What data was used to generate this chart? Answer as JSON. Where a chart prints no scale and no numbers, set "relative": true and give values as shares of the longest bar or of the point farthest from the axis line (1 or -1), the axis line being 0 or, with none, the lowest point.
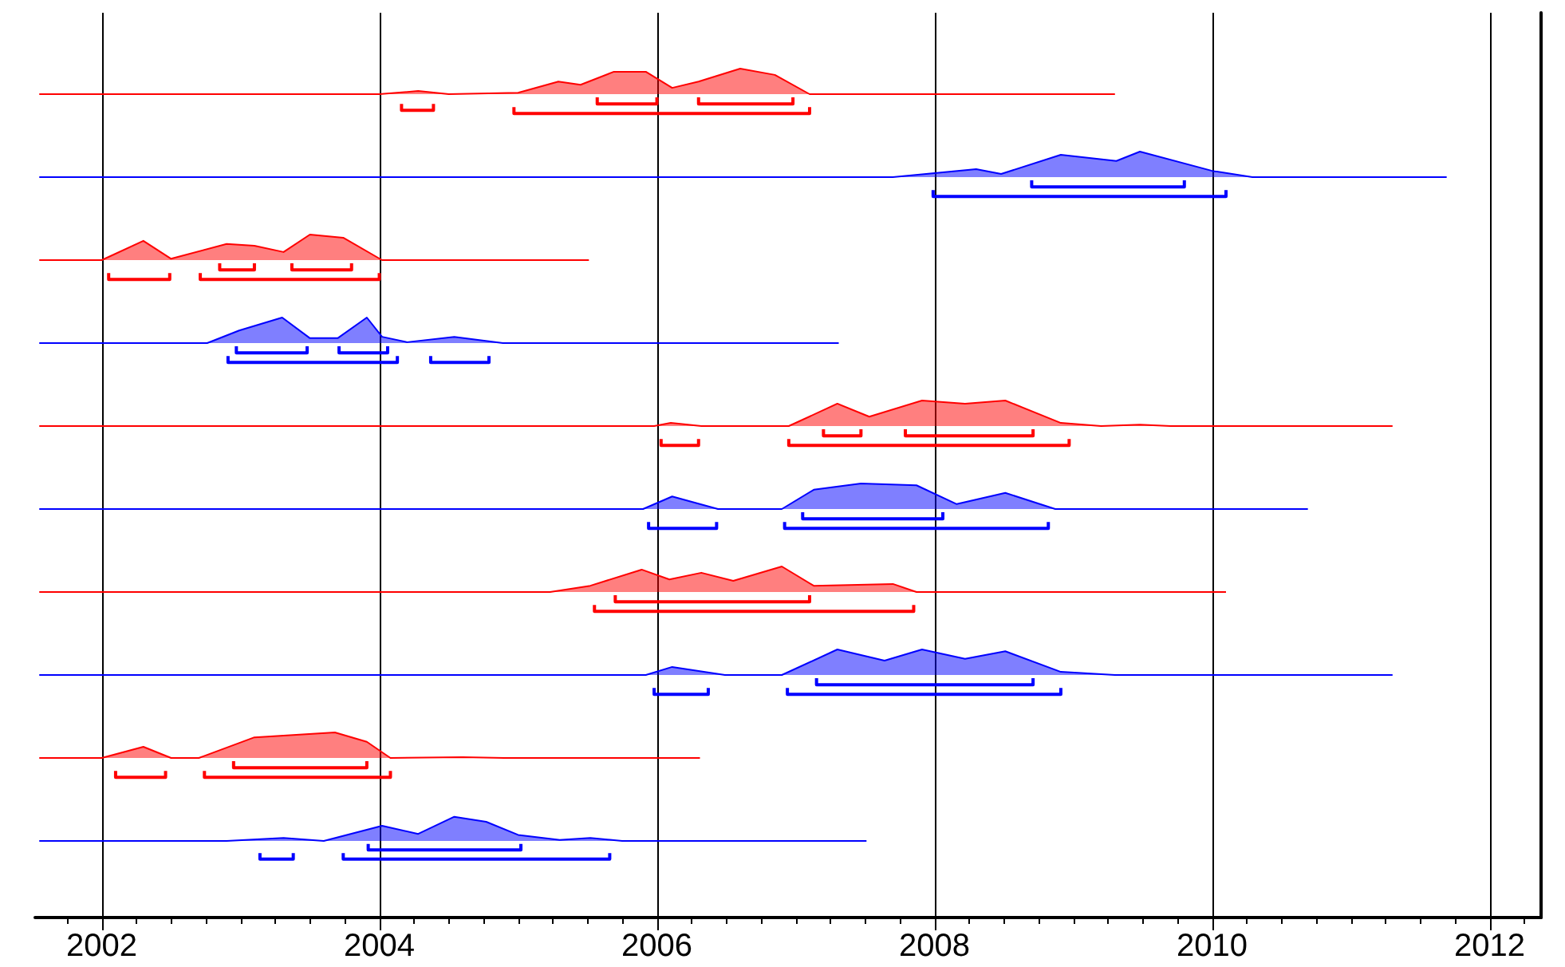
{
  "chart_data": [
    {
      "type": "area",
      "relative": true,
      "xticks": [
        2002,
        2004,
        2006,
        2008,
        2010,
        2012
      ],
      "grid": "x",
      "tick_labels": false,
      "series": [
        {
          "color": "#ff0000",
          "x": [
            2001.55,
            2004.0,
            2004.28,
            2004.5,
            2005.0,
            2005.29,
            2005.45,
            2005.69,
            2005.92,
            2006.11,
            2006.3,
            2006.6,
            2006.85,
            2007.1,
            2009.3
          ],
          "values": [
            0.43,
            0.43,
            0.5,
            0.43,
            0.46,
            0.71,
            0.64,
            0.93,
            0.93,
            0.57,
            0.71,
            1,
            0.86,
            0.43,
            0.43
          ]
        },
        {
          "type": "line",
          "color": "#ff0000",
          "x": [
            2004.16,
            2004.16,
            2004.39,
            2004.39
          ],
          "values": [
            0.21,
            0.07,
            0.07,
            0.21
          ]
        },
        {
          "type": "line",
          "color": "#ff0000",
          "x": [
            2005.57,
            2005.57,
            2006.0,
            2006.0
          ],
          "values": [
            0.36,
            0.21,
            0.21,
            0.36
          ]
        },
        {
          "type": "line",
          "color": "#ff0000",
          "x": [
            2006.3,
            2006.3,
            2006.98,
            2006.98
          ],
          "values": [
            0.36,
            0.21,
            0.21,
            0.36
          ]
        },
        {
          "type": "line",
          "color": "#ff0000",
          "x": [
            2004.97,
            2004.97,
            2007.1,
            2007.1
          ],
          "values": [
            0.14,
            0,
            0,
            0.14
          ]
        }
      ]
    },
    {
      "type": "area",
      "relative": true,
      "xticks": [
        2002,
        2004,
        2006,
        2008,
        2010,
        2012
      ],
      "grid": "x",
      "tick_labels": false,
      "series": [
        {
          "color": "#0000ff",
          "x": [
            2001.55,
            2007.7,
            2008.3,
            2008.48,
            2008.91,
            2009.31,
            2009.48,
            2010.0,
            2010.29,
            2011.69
          ],
          "values": [
            0.43,
            0.43,
            0.61,
            0.5,
            0.93,
            0.79,
            1,
            0.57,
            0.43,
            0.43
          ]
        },
        {
          "type": "line",
          "color": "#0000ff",
          "x": [
            2008.7,
            2008.7,
            2009.8,
            2009.8
          ],
          "values": [
            0.36,
            0.21,
            0.21,
            0.36
          ]
        },
        {
          "type": "line",
          "color": "#0000ff",
          "x": [
            2007.99,
            2007.99,
            2010.1,
            2010.1
          ],
          "values": [
            0.14,
            0,
            0,
            0.14
          ]
        }
      ]
    },
    {
      "type": "area",
      "relative": true,
      "xticks": [
        2002,
        2004,
        2006,
        2008,
        2010,
        2012
      ],
      "grid": "x",
      "tick_labels": false,
      "series": [
        {
          "color": "#ff0000",
          "x": [
            2001.55,
            2002.0,
            2002.3,
            2002.5,
            2002.9,
            2003.1,
            2003.31,
            2003.5,
            2003.74,
            2004.02,
            2005.51
          ],
          "values": [
            0.43,
            0.43,
            0.86,
            0.46,
            0.79,
            0.75,
            0.61,
            1,
            0.93,
            0.43,
            0.43
          ]
        },
        {
          "type": "line",
          "color": "#ff0000",
          "x": [
            2002.05,
            2002.05,
            2002.49,
            2002.49
          ],
          "values": [
            0.14,
            0,
            0,
            0.14
          ]
        },
        {
          "type": "line",
          "color": "#ff0000",
          "x": [
            2002.85,
            2002.85,
            2003.1,
            2003.1
          ],
          "values": [
            0.36,
            0.21,
            0.21,
            0.36
          ]
        },
        {
          "type": "line",
          "color": "#ff0000",
          "x": [
            2003.37,
            2003.37,
            2003.8,
            2003.8
          ],
          "values": [
            0.36,
            0.21,
            0.21,
            0.36
          ]
        },
        {
          "type": "line",
          "color": "#ff0000",
          "x": [
            2002.71,
            2002.71,
            2004.0,
            2004.0
          ],
          "values": [
            0.14,
            0,
            0,
            0.14
          ]
        }
      ]
    },
    {
      "type": "area",
      "relative": true,
      "xticks": [
        2002,
        2004,
        2006,
        2008,
        2010,
        2012
      ],
      "grid": "x",
      "tick_labels": false,
      "series": [
        {
          "color": "#0000ff",
          "x": [
            2001.55,
            2002.76,
            2002.99,
            2003.3,
            2003.5,
            2003.7,
            2003.91,
            2004.02,
            2004.2,
            2004.54,
            2004.89,
            2007.31
          ],
          "values": [
            0.43,
            0.43,
            0.71,
            1,
            0.54,
            0.54,
            1,
            0.57,
            0.45,
            0.57,
            0.43,
            0.43
          ]
        },
        {
          "type": "line",
          "color": "#0000ff",
          "x": [
            2002.97,
            2002.97,
            2003.48,
            2003.48
          ],
          "values": [
            0.36,
            0.21,
            0.21,
            0.36
          ]
        },
        {
          "type": "line",
          "color": "#0000ff",
          "x": [
            2003.71,
            2003.71,
            2004.06,
            2004.06
          ],
          "values": [
            0.36,
            0.21,
            0.21,
            0.36
          ]
        },
        {
          "type": "line",
          "color": "#0000ff",
          "x": [
            2002.91,
            2002.91,
            2004.13,
            2004.13
          ],
          "values": [
            0.14,
            0,
            0,
            0.14
          ]
        },
        {
          "type": "line",
          "color": "#0000ff",
          "x": [
            2004.37,
            2004.37,
            2004.79,
            2004.79
          ],
          "values": [
            0.14,
            0,
            0,
            0.14
          ]
        }
      ]
    },
    {
      "type": "area",
      "relative": true,
      "xticks": [
        2002,
        2004,
        2006,
        2008,
        2010,
        2012
      ],
      "grid": "x",
      "tick_labels": false,
      "series": [
        {
          "color": "#ff0000",
          "x": [
            2001.55,
            2005.98,
            2006.1,
            2006.32,
            2006.95,
            2007.3,
            2007.53,
            2007.91,
            2008.22,
            2008.51,
            2008.91,
            2009.2,
            2009.48,
            2009.7,
            2011.3
          ],
          "values": [
            0.43,
            0.43,
            0.5,
            0.43,
            0.43,
            0.93,
            0.64,
            1,
            0.93,
            1,
            0.5,
            0.43,
            0.46,
            0.43,
            0.43
          ]
        },
        {
          "type": "line",
          "color": "#ff0000",
          "x": [
            2006.03,
            2006.03,
            2006.3,
            2006.3
          ],
          "values": [
            0.14,
            0,
            0,
            0.14
          ]
        },
        {
          "type": "line",
          "color": "#ff0000",
          "x": [
            2007.2,
            2007.2,
            2007.47,
            2007.47
          ],
          "values": [
            0.36,
            0.21,
            0.21,
            0.36
          ]
        },
        {
          "type": "line",
          "color": "#ff0000",
          "x": [
            2007.79,
            2007.79,
            2008.71,
            2008.71
          ],
          "values": [
            0.36,
            0.21,
            0.21,
            0.36
          ]
        },
        {
          "type": "line",
          "color": "#ff0000",
          "x": [
            2006.95,
            2006.95,
            2008.97,
            2008.97
          ],
          "values": [
            0.14,
            0,
            0,
            0.14
          ]
        }
      ]
    },
    {
      "type": "area",
      "relative": true,
      "xticks": [
        2002,
        2004,
        2006,
        2008,
        2010,
        2012
      ],
      "grid": "x",
      "tick_labels": false,
      "series": [
        {
          "color": "#0000ff",
          "x": [
            2001.55,
            2005.9,
            2006.11,
            2006.44,
            2006.9,
            2007.13,
            2007.47,
            2007.87,
            2008.16,
            2008.51,
            2008.87,
            2010.69
          ],
          "values": [
            0.43,
            0.43,
            0.71,
            0.43,
            0.43,
            0.86,
            1,
            0.96,
            0.54,
            0.79,
            0.43,
            0.43
          ]
        },
        {
          "type": "line",
          "color": "#0000ff",
          "x": [
            2005.94,
            2005.94,
            2006.43,
            2006.43
          ],
          "values": [
            0.14,
            0,
            0,
            0.14
          ]
        },
        {
          "type": "line",
          "color": "#0000ff",
          "x": [
            2007.05,
            2007.05,
            2008.06,
            2008.06
          ],
          "values": [
            0.36,
            0.21,
            0.21,
            0.36
          ]
        },
        {
          "type": "line",
          "color": "#0000ff",
          "x": [
            2006.92,
            2006.92,
            2008.82,
            2008.82
          ],
          "values": [
            0.14,
            0,
            0,
            0.14
          ]
        }
      ]
    },
    {
      "type": "area",
      "relative": true,
      "xticks": [
        2002,
        2004,
        2006,
        2008,
        2010,
        2012
      ],
      "grid": "x",
      "tick_labels": false,
      "series": [
        {
          "color": "#ff0000",
          "x": [
            2001.55,
            2005.23,
            2005.52,
            2005.89,
            2006.09,
            2006.32,
            2006.55,
            2006.9,
            2007.13,
            2007.7,
            2007.87,
            2010.1
          ],
          "values": [
            0.43,
            0.43,
            0.57,
            0.93,
            0.71,
            0.86,
            0.68,
            1,
            0.57,
            0.61,
            0.43,
            0.43
          ]
        },
        {
          "type": "line",
          "color": "#ff0000",
          "x": [
            2005.7,
            2005.7,
            2007.1,
            2007.1
          ],
          "values": [
            0.36,
            0.21,
            0.21,
            0.36
          ]
        },
        {
          "type": "line",
          "color": "#ff0000",
          "x": [
            2005.55,
            2005.55,
            2007.85,
            2007.85
          ],
          "values": [
            0.14,
            0,
            0,
            0.14
          ]
        }
      ]
    },
    {
      "type": "area",
      "relative": true,
      "xticks": [
        2002,
        2004,
        2006,
        2008,
        2010,
        2012
      ],
      "grid": "x",
      "tick_labels": false,
      "series": [
        {
          "color": "#0000ff",
          "x": [
            2001.55,
            2005.92,
            2006.11,
            2006.49,
            2006.9,
            2007.3,
            2007.64,
            2007.91,
            2008.22,
            2008.51,
            2008.91,
            2009.3,
            2011.3
          ],
          "values": [
            0.43,
            0.43,
            0.61,
            0.43,
            0.43,
            1,
            0.75,
            1,
            0.79,
            0.96,
            0.5,
            0.43,
            0.43
          ]
        },
        {
          "type": "line",
          "color": "#0000ff",
          "x": [
            2005.98,
            2005.98,
            2006.37,
            2006.37
          ],
          "values": [
            0.14,
            0,
            0,
            0.14
          ]
        },
        {
          "type": "line",
          "color": "#0000ff",
          "x": [
            2007.15,
            2007.15,
            2008.71,
            2008.71
          ],
          "values": [
            0.36,
            0.21,
            0.21,
            0.36
          ]
        },
        {
          "type": "line",
          "color": "#0000ff",
          "x": [
            2006.94,
            2006.94,
            2008.91,
            2008.91
          ],
          "values": [
            0.14,
            0,
            0,
            0.14
          ]
        }
      ]
    },
    {
      "type": "area",
      "relative": true,
      "xticks": [
        2002,
        2004,
        2006,
        2008,
        2010,
        2012
      ],
      "grid": "x",
      "tick_labels": false,
      "series": [
        {
          "color": "#ff0000",
          "x": [
            2001.55,
            2002.0,
            2002.3,
            2002.5,
            2002.7,
            2003.1,
            2003.68,
            2003.91,
            2004.08,
            2004.6,
            2004.9,
            2006.31
          ],
          "values": [
            0.43,
            0.43,
            0.68,
            0.43,
            0.43,
            0.89,
            1,
            0.79,
            0.43,
            0.45,
            0.43,
            0.43
          ]
        },
        {
          "type": "line",
          "color": "#ff0000",
          "x": [
            2002.1,
            2002.1,
            2002.46,
            2002.46
          ],
          "values": [
            0.14,
            0,
            0,
            0.14
          ]
        },
        {
          "type": "line",
          "color": "#ff0000",
          "x": [
            2002.95,
            2002.95,
            2003.91,
            2003.91
          ],
          "values": [
            0.36,
            0.21,
            0.21,
            0.36
          ]
        },
        {
          "type": "line",
          "color": "#ff0000",
          "x": [
            2002.74,
            2002.74,
            2004.08,
            2004.08
          ],
          "values": [
            0.14,
            0,
            0,
            0.14
          ]
        }
      ]
    },
    {
      "type": "area",
      "relative": true,
      "xlim": [
        2001.52,
        2012.37
      ],
      "xticks": [
        2002,
        2004,
        2006,
        2008,
        2010,
        2012
      ],
      "grid": "x",
      "tick_labels": "x",
      "series": [
        {
          "color": "#0000ff",
          "x": [
            2001.55,
            2002.9,
            2003.31,
            2003.6,
            2004.02,
            2004.28,
            2004.54,
            2004.77,
            2005.0,
            2005.3,
            2005.52,
            2005.75,
            2007.51
          ],
          "values": [
            0.76,
            0.76,
            0.79,
            0.76,
            0.91,
            0.83,
            1,
            0.95,
            0.82,
            0.77,
            0.79,
            0.76,
            0.76
          ]
        },
        {
          "type": "line",
          "color": "#0000ff",
          "x": [
            2003.14,
            2003.14,
            2003.38,
            2003.38
          ],
          "values": [
            0.64,
            0.58,
            0.58,
            0.64
          ]
        },
        {
          "type": "line",
          "color": "#0000ff",
          "x": [
            2003.92,
            2003.92,
            2005.02,
            2005.02
          ],
          "values": [
            0.73,
            0.67,
            0.67,
            0.73
          ]
        },
        {
          "type": "line",
          "color": "#0000ff",
          "x": [
            2003.74,
            2003.74,
            2005.66,
            2005.66
          ],
          "values": [
            0.64,
            0.58,
            0.58,
            0.64
          ]
        }
      ]
    }
  ]
}
